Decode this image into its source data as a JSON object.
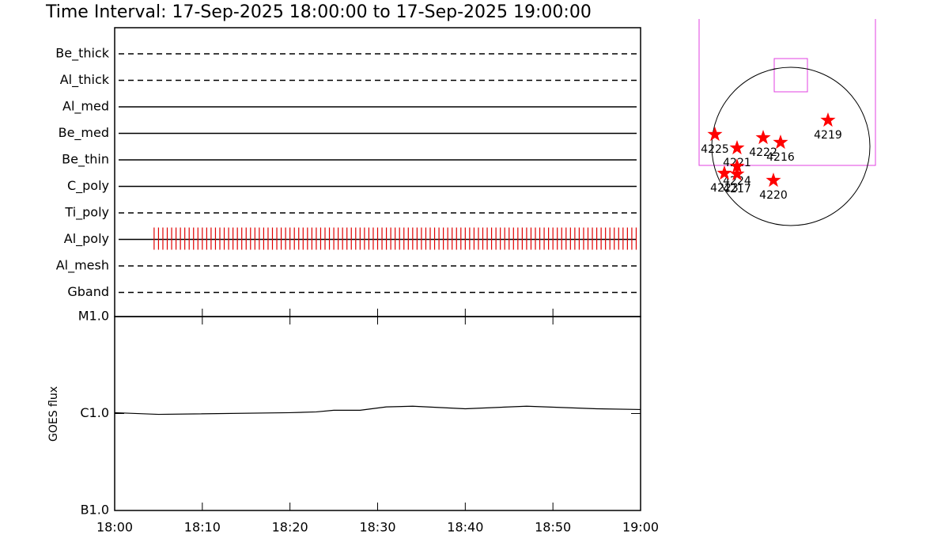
{
  "chart_data": [
    {
      "type": "timeline",
      "title": "Time Interval: 17-Sep-2025 18:00:00 to 17-Sep-2025 19:00:00",
      "categories": [
        "Be_thick",
        "Al_thick",
        "Al_med",
        "Be_med",
        "Be_thin",
        "C_poly",
        "Ti_poly",
        "Al_poly",
        "Al_mesh",
        "Gband"
      ],
      "line_styles": [
        "dashed",
        "dashed",
        "solid",
        "solid",
        "solid",
        "solid",
        "dashed",
        "solid",
        "dashed",
        "dashed"
      ],
      "marked_row": 7,
      "mark_color": "#e00000",
      "marks_x": [
        4.5,
        5,
        5.5,
        6,
        6.5,
        7,
        7.5,
        8,
        8.5,
        9,
        9.5,
        10,
        10.5,
        11,
        11.5,
        12,
        12.5,
        13,
        13.5,
        14,
        14.5,
        15,
        15.5,
        16,
        16.5,
        17,
        17.5,
        18,
        18.5,
        19,
        19.5,
        20,
        20.5,
        21,
        21.5,
        22,
        22.5,
        23,
        23.5,
        24,
        24.5,
        25,
        25.5,
        26,
        26.5,
        27,
        27.5,
        28,
        28.5,
        29,
        29.5,
        30,
        30.5,
        31,
        31.5,
        32,
        32.5,
        33,
        33.5,
        34,
        34.5,
        35,
        35.5,
        36,
        36.5,
        37,
        37.5,
        38,
        38.5,
        39,
        39.5,
        40,
        40.5,
        41,
        41.5,
        42,
        42.5,
        43,
        43.5,
        44,
        44.5,
        45,
        45.5,
        46,
        46.5,
        47,
        47.5,
        48,
        48.5,
        49,
        49.5,
        50,
        50.5,
        51,
        51.5,
        52,
        52.5,
        53,
        53.5,
        54,
        54.5,
        55,
        55.5,
        56,
        56.5,
        57,
        57.5,
        58,
        58.5,
        59,
        59.5
      ],
      "xlim": [
        0,
        60
      ]
    },
    {
      "type": "line",
      "y_label": "GOES flux",
      "log_scale": true,
      "color": "#000000",
      "x": [
        0,
        5,
        20,
        23,
        25,
        28,
        31,
        34,
        40,
        47,
        55,
        60
      ],
      "values": [
        1.02e-06,
        9.8e-07,
        1.02e-06,
        1.04e-06,
        1.08e-06,
        1.08e-06,
        1.17e-06,
        1.19e-06,
        1.12e-06,
        1.19e-06,
        1.12e-06,
        1.1e-06
      ],
      "xlim": [
        0,
        60
      ],
      "xticks": [
        {
          "value": 0,
          "label": "18:00"
        },
        {
          "value": 10,
          "label": "18:10"
        },
        {
          "value": 20,
          "label": "18:20"
        },
        {
          "value": 30,
          "label": "18:30"
        },
        {
          "value": 40,
          "label": "18:40"
        },
        {
          "value": 50,
          "label": "18:50"
        },
        {
          "value": 60,
          "label": "19:00"
        }
      ],
      "ylim": [
        1e-07,
        1e-05
      ],
      "yticks": [
        {
          "value": 1e-07,
          "label": "B1.0"
        },
        {
          "value": 1e-06,
          "label": "C1.0"
        },
        {
          "value": 1e-05,
          "label": "M1.0"
        }
      ]
    },
    {
      "type": "map",
      "color": "#ff0000",
      "labels": [
        "4225",
        "4221",
        "4222",
        "4216",
        "4219",
        "4220",
        "4224",
        "4217",
        "4223"
      ],
      "x": [
        -920,
        -652,
        -335,
        -125,
        450,
        -211,
        -652,
        -652,
        -805
      ],
      "y": [
        144,
        -19,
        105,
        48,
        316,
        -412,
        -240,
        -335,
        -326
      ],
      "xlim": [
        -1150,
        1150
      ],
      "ylim": [
        -1150,
        1150
      ]
    }
  ]
}
